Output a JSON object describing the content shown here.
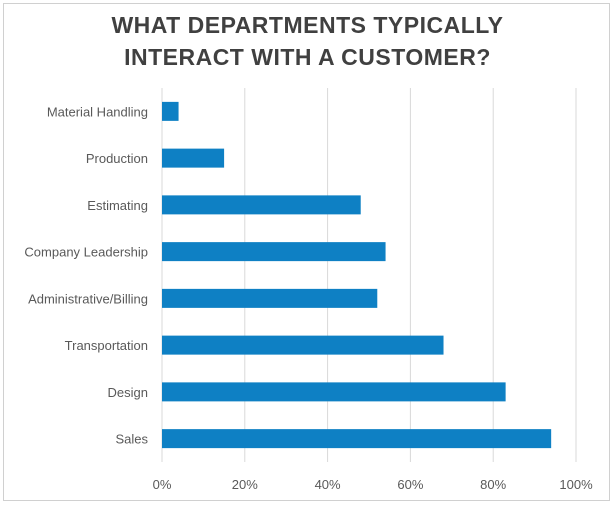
{
  "chart_data": {
    "type": "bar",
    "orientation": "horizontal",
    "title_lines": [
      "WHAT DEPARTMENTS TYPICALLY",
      "INTERACT WITH A CUSTOMER?"
    ],
    "categories": [
      "Material Handling",
      "Production",
      "Estimating",
      "Company Leadership",
      "Administrative/Billing",
      "Transportation",
      "Design",
      "Sales"
    ],
    "values": [
      0.04,
      0.15,
      0.48,
      0.54,
      0.52,
      0.68,
      0.83,
      0.94
    ],
    "xlim": [
      0,
      1
    ],
    "x_ticks": [
      0,
      0.2,
      0.4,
      0.6,
      0.8,
      1.0
    ],
    "x_tick_labels": [
      "0%",
      "20%",
      "40%",
      "60%",
      "80%",
      "100%"
    ],
    "grid": true,
    "legend": "none",
    "colors": {
      "bar": "#0e80c4",
      "grid": "#d9d9d9",
      "text": "#595959",
      "title": "#404040"
    }
  }
}
